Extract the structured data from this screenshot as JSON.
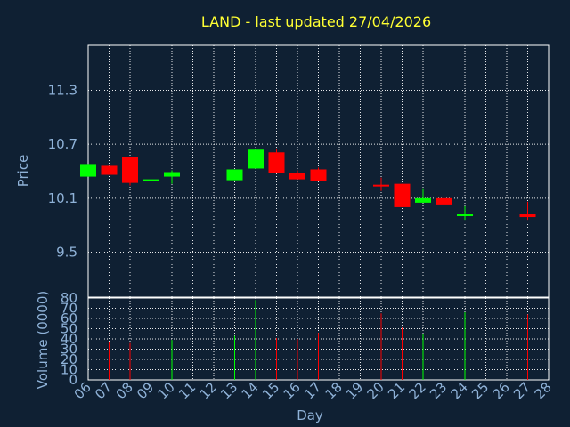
{
  "chart_data": {
    "type": "candlestick",
    "title": "LAND - last updated 27/04/2026",
    "xlabel": "Day",
    "price_panel": {
      "ylabel": "Price",
      "ylim": [
        9.0,
        11.8
      ],
      "yticks": [
        "9.5",
        "10.1",
        "10.7",
        "11.3"
      ],
      "grid": true
    },
    "volume_panel": {
      "ylabel": "Volume (0000)",
      "ylim": [
        0,
        80
      ],
      "yticks": [
        "0",
        "10",
        "20",
        "30",
        "40",
        "50",
        "60",
        "70",
        "80"
      ],
      "grid": true
    },
    "x_tick_labels": [
      "06",
      "07",
      "08",
      "09",
      "10",
      "11",
      "12",
      "13",
      "14",
      "15",
      "16",
      "17",
      "18",
      "19",
      "20",
      "21",
      "22",
      "23",
      "24",
      "25",
      "26",
      "27",
      "28"
    ],
    "candles": [
      {
        "day": "06",
        "open": 10.34,
        "close": 10.48,
        "high": 10.48,
        "low": 10.34,
        "volume": 0
      },
      {
        "day": "07",
        "open": 10.46,
        "close": 10.36,
        "high": 10.46,
        "low": 10.36,
        "volume": 37
      },
      {
        "day": "08",
        "open": 10.56,
        "close": 10.27,
        "high": 10.56,
        "low": 10.24,
        "volume": 36
      },
      {
        "day": "09",
        "open": 10.31,
        "close": 10.31,
        "high": 10.38,
        "low": 10.28,
        "volume": 45
      },
      {
        "day": "10",
        "open": 10.34,
        "close": 10.39,
        "high": 10.41,
        "low": 10.26,
        "volume": 39
      },
      {
        "day": "13",
        "open": 10.3,
        "close": 10.42,
        "high": 10.42,
        "low": 10.3,
        "volume": 43
      },
      {
        "day": "14",
        "open": 10.43,
        "close": 10.64,
        "high": 10.64,
        "low": 10.43,
        "volume": 78
      },
      {
        "day": "15",
        "open": 10.61,
        "close": 10.38,
        "high": 10.65,
        "low": 10.38,
        "volume": 41
      },
      {
        "day": "16",
        "open": 10.38,
        "close": 10.31,
        "high": 10.41,
        "low": 10.31,
        "volume": 40
      },
      {
        "day": "17",
        "open": 10.42,
        "close": 10.29,
        "high": 10.44,
        "low": 10.29,
        "volume": 46
      },
      {
        "day": "20",
        "open": 10.25,
        "close": 10.24,
        "high": 10.33,
        "low": 10.18,
        "volume": 65
      },
      {
        "day": "21",
        "open": 10.26,
        "close": 10.0,
        "high": 10.26,
        "low": 10.0,
        "volume": 51
      },
      {
        "day": "22",
        "open": 10.05,
        "close": 10.1,
        "high": 10.21,
        "low": 10.05,
        "volume": 45
      },
      {
        "day": "23",
        "open": 10.1,
        "close": 10.03,
        "high": 10.12,
        "low": 10.03,
        "volume": 37
      },
      {
        "day": "24",
        "open": 9.92,
        "close": 9.92,
        "high": 10.01,
        "low": 9.86,
        "volume": 66
      },
      {
        "day": "27",
        "open": 9.92,
        "close": 9.89,
        "high": 10.06,
        "low": 9.86,
        "volume": 64
      }
    ],
    "colors": {
      "up": "#00ff00",
      "down": "#ff0000",
      "background": "#0f2033",
      "grid": "#ffffff",
      "axis_text": "#8fb2d8",
      "title": "#ffff33"
    }
  }
}
